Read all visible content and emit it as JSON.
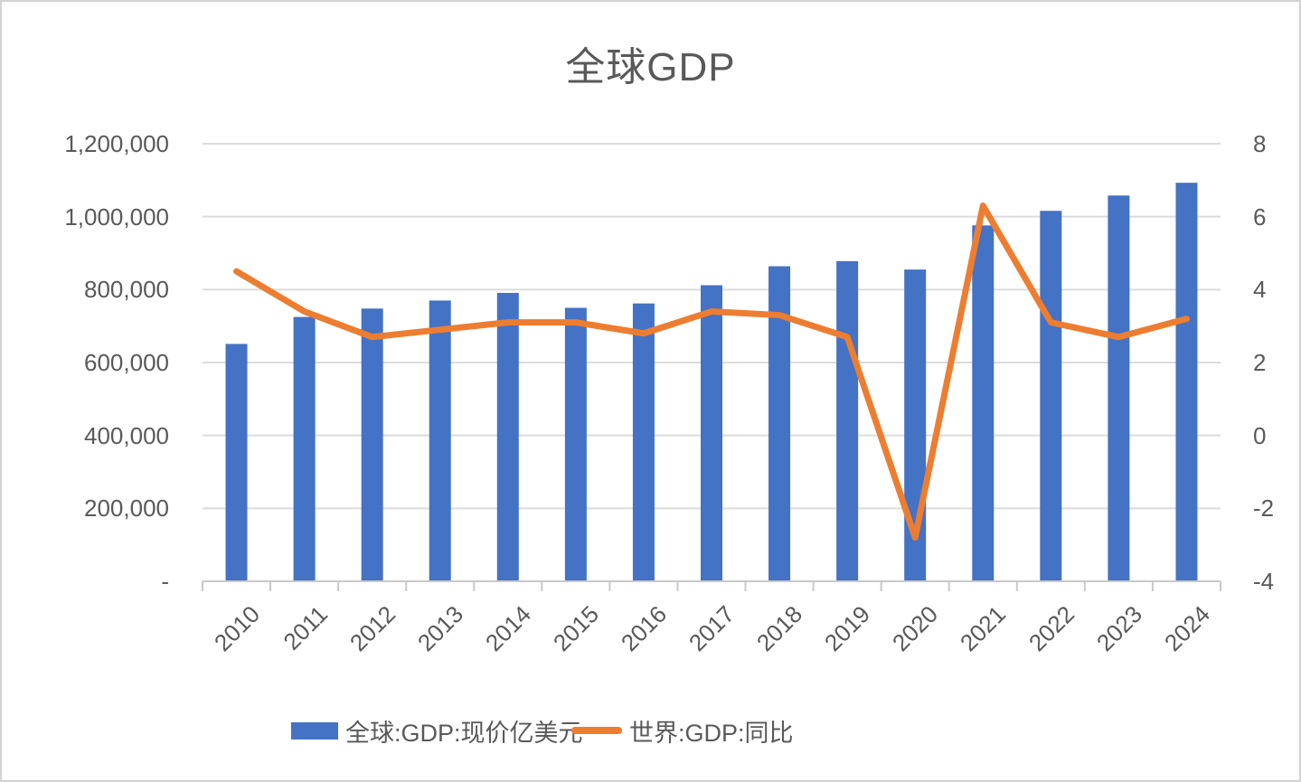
{
  "title": "全球GDP",
  "colors": {
    "bar": "#4472C4",
    "line": "#ED7D31",
    "gridline": "#DCDCDC",
    "axis": "#C9C9C9",
    "text": "#595959"
  },
  "chart_data": {
    "type": "bar",
    "subtype": "combo-bar-line-dual-axis",
    "title": "全球GDP",
    "categories": [
      "2010",
      "2011",
      "2012",
      "2013",
      "2014",
      "2015",
      "2016",
      "2017",
      "2018",
      "2019",
      "2020",
      "2021",
      "2022",
      "2023",
      "2024"
    ],
    "series": [
      {
        "name": "全球:GDP:现价亿美元",
        "type": "bar",
        "axis": "left",
        "color": "#4472C4",
        "values": [
          651000,
          725000,
          748000,
          770000,
          791000,
          750000,
          762000,
          812000,
          864000,
          878000,
          855000,
          976000,
          1016000,
          1058000,
          1093000
        ]
      },
      {
        "name": "世界:GDP:同比",
        "type": "line",
        "axis": "right",
        "color": "#ED7D31",
        "values": [
          4.5,
          3.4,
          2.7,
          2.9,
          3.1,
          3.1,
          2.8,
          3.4,
          3.3,
          2.7,
          -2.8,
          6.3,
          3.1,
          2.7,
          3.2
        ]
      }
    ],
    "left_axis": {
      "min": 0,
      "max": 1200000,
      "step": 200000,
      "tick_labels": [
        "-",
        "200,000",
        "400,000",
        "600,000",
        "800,000",
        "1,000,000",
        "1,200,000"
      ]
    },
    "right_axis": {
      "min": -4,
      "max": 8,
      "step": 2,
      "tick_labels": [
        "-4",
        "-2",
        "0",
        "2",
        "4",
        "6",
        "8"
      ]
    },
    "grid": true,
    "legend_position": "bottom"
  }
}
